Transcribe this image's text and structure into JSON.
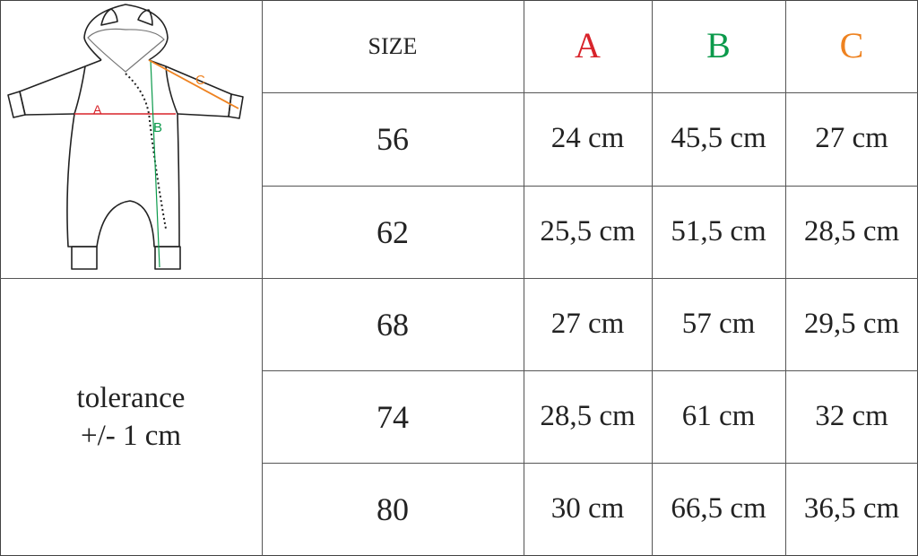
{
  "header": {
    "size_label": "SIZE",
    "columns": [
      {
        "label": "A",
        "color": "#d8232a"
      },
      {
        "label": "B",
        "color": "#0b9a4b"
      },
      {
        "label": "C",
        "color": "#ee8220"
      }
    ]
  },
  "illustration": {
    "icon": "baby-jumpsuit-measurement-diagram",
    "labels": [
      "A",
      "B",
      "C"
    ]
  },
  "tolerance": {
    "line1": "tolerance",
    "line2": "+/- 1 cm"
  },
  "rows": [
    {
      "size": "56",
      "a": "24 cm",
      "b": "45,5 cm",
      "c": "27 cm"
    },
    {
      "size": "62",
      "a": "25,5 cm",
      "b": "51,5 cm",
      "c": "28,5 cm"
    },
    {
      "size": "68",
      "a": "27 cm",
      "b": "57 cm",
      "c": "29,5 cm"
    },
    {
      "size": "74",
      "a": "28,5 cm",
      "b": "61 cm",
      "c": "32 cm"
    },
    {
      "size": "80",
      "a": "30 cm",
      "b": "66,5 cm",
      "c": "36,5 cm"
    }
  ]
}
